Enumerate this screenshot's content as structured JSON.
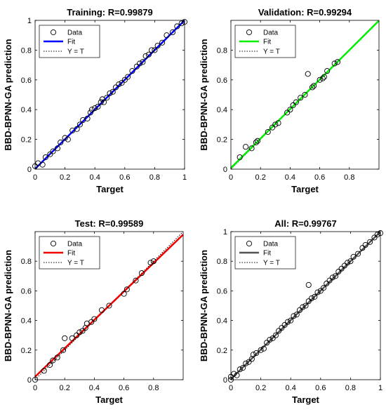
{
  "chart_data": [
    {
      "type": "scatter",
      "title": "Training: R=0.99879",
      "xlabel": "Target",
      "ylabel": "BBD-BPNN-GA prediction",
      "xlim": [
        0,
        1
      ],
      "ylim": [
        0,
        1
      ],
      "xticks": [
        "0",
        "0.2",
        "0.4",
        "0.6",
        "0.8",
        "1"
      ],
      "yticks": [
        "0",
        "0.2",
        "0.4",
        "0.6",
        "0.8",
        "1"
      ],
      "legend": [
        "Data",
        "Fit",
        "Y = T"
      ],
      "legend_position": "top-left",
      "fit_color": "#0000ff",
      "fit": {
        "slope": 0.998,
        "intercept": 0.002
      },
      "points": [
        [
          0.0,
          0.02
        ],
        [
          0.02,
          0.04
        ],
        [
          0.05,
          0.03
        ],
        [
          0.07,
          0.08
        ],
        [
          0.1,
          0.1
        ],
        [
          0.12,
          0.12
        ],
        [
          0.15,
          0.14
        ],
        [
          0.17,
          0.18
        ],
        [
          0.2,
          0.21
        ],
        [
          0.22,
          0.2
        ],
        [
          0.25,
          0.26
        ],
        [
          0.28,
          0.27
        ],
        [
          0.3,
          0.3
        ],
        [
          0.32,
          0.33
        ],
        [
          0.35,
          0.34
        ],
        [
          0.37,
          0.38
        ],
        [
          0.38,
          0.4
        ],
        [
          0.4,
          0.41
        ],
        [
          0.42,
          0.42
        ],
        [
          0.44,
          0.45
        ],
        [
          0.45,
          0.47
        ],
        [
          0.46,
          0.45
        ],
        [
          0.48,
          0.48
        ],
        [
          0.5,
          0.51
        ],
        [
          0.52,
          0.52
        ],
        [
          0.54,
          0.55
        ],
        [
          0.56,
          0.57
        ],
        [
          0.58,
          0.58
        ],
        [
          0.6,
          0.6
        ],
        [
          0.62,
          0.62
        ],
        [
          0.65,
          0.66
        ],
        [
          0.68,
          0.69
        ],
        [
          0.7,
          0.71
        ],
        [
          0.72,
          0.72
        ],
        [
          0.74,
          0.76
        ],
        [
          0.76,
          0.77
        ],
        [
          0.78,
          0.8
        ],
        [
          0.8,
          0.8
        ],
        [
          0.82,
          0.83
        ],
        [
          0.85,
          0.85
        ],
        [
          0.88,
          0.9
        ],
        [
          0.92,
          0.92
        ],
        [
          0.95,
          0.96
        ],
        [
          0.98,
          0.98
        ],
        [
          1.0,
          0.99
        ]
      ]
    },
    {
      "type": "scatter",
      "title": "Validation: R=0.99294",
      "xlabel": "Target",
      "ylabel": "BBD-BPNN-GA prediction",
      "xlim": [
        0,
        1
      ],
      "ylim": [
        0,
        1
      ],
      "xticks": [
        "0",
        "0.2",
        "0.4",
        "0.6",
        "0.8"
      ],
      "yticks": [
        "0",
        "0.2",
        "0.4",
        "0.6",
        "0.8"
      ],
      "legend": [
        "Data",
        "Fit",
        "Y = T"
      ],
      "legend_position": "top-left",
      "fit_color": "#00ee00",
      "fit": {
        "slope": 0.99,
        "intercept": 0.008
      },
      "points": [
        [
          0.06,
          0.08
        ],
        [
          0.1,
          0.15
        ],
        [
          0.14,
          0.14
        ],
        [
          0.17,
          0.18
        ],
        [
          0.18,
          0.19
        ],
        [
          0.25,
          0.25
        ],
        [
          0.28,
          0.28
        ],
        [
          0.3,
          0.3
        ],
        [
          0.32,
          0.31
        ],
        [
          0.38,
          0.38
        ],
        [
          0.4,
          0.4
        ],
        [
          0.42,
          0.43
        ],
        [
          0.44,
          0.45
        ],
        [
          0.47,
          0.48
        ],
        [
          0.5,
          0.5
        ],
        [
          0.52,
          0.64
        ],
        [
          0.55,
          0.55
        ],
        [
          0.56,
          0.56
        ],
        [
          0.6,
          0.6
        ],
        [
          0.62,
          0.61
        ],
        [
          0.63,
          0.62
        ],
        [
          0.65,
          0.66
        ],
        [
          0.7,
          0.71
        ],
        [
          0.72,
          0.72
        ]
      ]
    },
    {
      "type": "scatter",
      "title": "Test: R=0.99589",
      "xlabel": "Target",
      "ylabel": "BBD-BPNN-GA prediction",
      "xlim": [
        0,
        1
      ],
      "ylim": [
        0,
        1
      ],
      "xticks": [
        "0",
        "0.2",
        "0.4",
        "0.6",
        "0.8"
      ],
      "yticks": [
        "0",
        "0.2",
        "0.4",
        "0.6",
        "0.8"
      ],
      "legend": [
        "Data",
        "Fit",
        "Y = T"
      ],
      "legend_position": "top-left",
      "fit_color": "#ee0000",
      "fit": {
        "slope": 0.96,
        "intercept": 0.02
      },
      "points": [
        [
          0.0,
          0.0
        ],
        [
          0.06,
          0.06
        ],
        [
          0.1,
          0.1
        ],
        [
          0.12,
          0.13
        ],
        [
          0.15,
          0.15
        ],
        [
          0.19,
          0.2
        ],
        [
          0.2,
          0.28
        ],
        [
          0.25,
          0.28
        ],
        [
          0.28,
          0.3
        ],
        [
          0.3,
          0.32
        ],
        [
          0.32,
          0.33
        ],
        [
          0.34,
          0.35
        ],
        [
          0.35,
          0.38
        ],
        [
          0.38,
          0.39
        ],
        [
          0.4,
          0.41
        ],
        [
          0.45,
          0.47
        ],
        [
          0.5,
          0.5
        ],
        [
          0.6,
          0.58
        ],
        [
          0.62,
          0.61
        ],
        [
          0.68,
          0.67
        ],
        [
          0.72,
          0.72
        ],
        [
          0.78,
          0.79
        ],
        [
          0.8,
          0.8
        ]
      ]
    },
    {
      "type": "scatter",
      "title": "All: R=0.99767",
      "xlabel": "Target",
      "ylabel": "BBD-BPNN-GA prediction",
      "xlim": [
        0,
        1
      ],
      "ylim": [
        0,
        1
      ],
      "xticks": [
        "0",
        "0.2",
        "0.4",
        "0.6",
        "0.8",
        "1"
      ],
      "yticks": [
        "0",
        "0.2",
        "0.4",
        "0.6",
        "0.8",
        "1"
      ],
      "legend": [
        "Data",
        "Fit",
        "Y = T"
      ],
      "legend_position": "top-left",
      "fit_color": "#555555",
      "fit": {
        "slope": 0.995,
        "intercept": 0.004
      },
      "points": [
        [
          0.0,
          0.0
        ],
        [
          0.0,
          0.02
        ],
        [
          0.02,
          0.04
        ],
        [
          0.04,
          0.03
        ],
        [
          0.06,
          0.07
        ],
        [
          0.08,
          0.08
        ],
        [
          0.1,
          0.11
        ],
        [
          0.12,
          0.12
        ],
        [
          0.14,
          0.14
        ],
        [
          0.15,
          0.17
        ],
        [
          0.17,
          0.18
        ],
        [
          0.2,
          0.2
        ],
        [
          0.22,
          0.21
        ],
        [
          0.24,
          0.25
        ],
        [
          0.26,
          0.27
        ],
        [
          0.28,
          0.28
        ],
        [
          0.3,
          0.3
        ],
        [
          0.32,
          0.33
        ],
        [
          0.34,
          0.35
        ],
        [
          0.36,
          0.37
        ],
        [
          0.38,
          0.39
        ],
        [
          0.4,
          0.4
        ],
        [
          0.42,
          0.43
        ],
        [
          0.44,
          0.44
        ],
        [
          0.46,
          0.47
        ],
        [
          0.48,
          0.49
        ],
        [
          0.5,
          0.5
        ],
        [
          0.52,
          0.53
        ],
        [
          0.52,
          0.64
        ],
        [
          0.54,
          0.55
        ],
        [
          0.56,
          0.56
        ],
        [
          0.58,
          0.59
        ],
        [
          0.6,
          0.6
        ],
        [
          0.62,
          0.62
        ],
        [
          0.64,
          0.65
        ],
        [
          0.66,
          0.67
        ],
        [
          0.68,
          0.69
        ],
        [
          0.7,
          0.7
        ],
        [
          0.72,
          0.73
        ],
        [
          0.74,
          0.75
        ],
        [
          0.76,
          0.77
        ],
        [
          0.78,
          0.79
        ],
        [
          0.8,
          0.8
        ],
        [
          0.82,
          0.83
        ],
        [
          0.85,
          0.85
        ],
        [
          0.88,
          0.89
        ],
        [
          0.9,
          0.91
        ],
        [
          0.93,
          0.93
        ],
        [
          0.96,
          0.96
        ],
        [
          0.98,
          0.98
        ],
        [
          1.0,
          0.99
        ]
      ]
    }
  ]
}
